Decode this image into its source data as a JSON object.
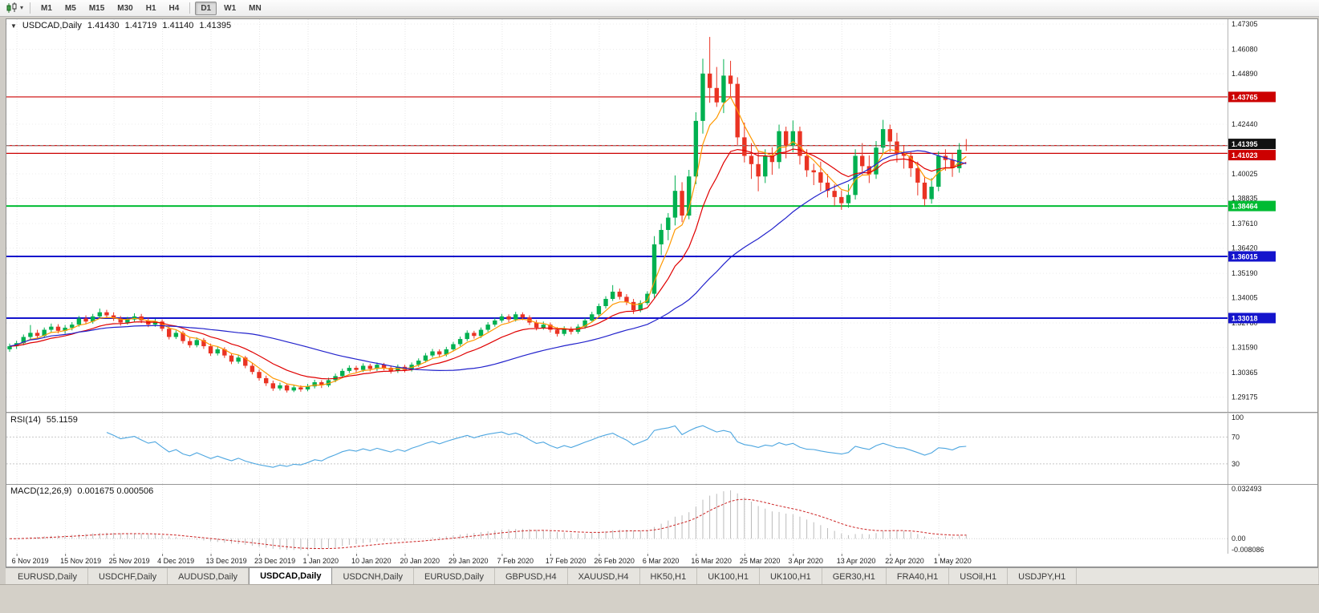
{
  "toolbar": {
    "groups": [
      [
        "M1",
        "M5",
        "M15",
        "M30",
        "H1",
        "H4"
      ],
      [
        "D1",
        "W1",
        "MN"
      ]
    ],
    "selected": "D1",
    "chart_type_icon": "candlestick-chart-icon"
  },
  "window": {
    "symbol_header": {
      "symbol": "USDCAD,Daily",
      "open": "1.41430",
      "high": "1.41719",
      "low": "1.41140",
      "close": "1.41395"
    }
  },
  "chart_data": {
    "type": "candlestick",
    "symbol": "USDCAD",
    "timeframe": "Daily",
    "bull_color": "#00b050",
    "bear_color": "#ea3323",
    "price_range": {
      "min": 1.2846,
      "max": 1.4754
    },
    "y_axis_labels": [
      "1.47305",
      "1.46080",
      "1.44890",
      "1.42440",
      "1.40025",
      "1.38835",
      "1.37610",
      "1.36420",
      "1.35190",
      "1.34005",
      "1.32780",
      "1.31590",
      "1.30365",
      "1.29175"
    ],
    "x_labels": [
      {
        "index": 1,
        "label": "6 Nov 2019"
      },
      {
        "index": 8,
        "label": "15 Nov 2019"
      },
      {
        "index": 15,
        "label": "25 Nov 2019"
      },
      {
        "index": 22,
        "label": "4 Dec 2019"
      },
      {
        "index": 29,
        "label": "13 Dec 2019"
      },
      {
        "index": 36,
        "label": "23 Dec 2019"
      },
      {
        "index": 43,
        "label": "1 Jan 2020"
      },
      {
        "index": 50,
        "label": "10 Jan 2020"
      },
      {
        "index": 57,
        "label": "20 Jan 2020"
      },
      {
        "index": 64,
        "label": "29 Jan 2020"
      },
      {
        "index": 71,
        "label": "7 Feb 2020"
      },
      {
        "index": 78,
        "label": "17 Feb 2020"
      },
      {
        "index": 85,
        "label": "26 Feb 2020"
      },
      {
        "index": 92,
        "label": "6 Mar 2020"
      },
      {
        "index": 99,
        "label": "16 Mar 2020"
      },
      {
        "index": 106,
        "label": "25 Mar 2020"
      },
      {
        "index": 113,
        "label": "3 Apr 2020"
      },
      {
        "index": 120,
        "label": "13 Apr 2020"
      },
      {
        "index": 127,
        "label": "22 Apr 2020"
      },
      {
        "index": 134,
        "label": "1 May 2020"
      }
    ],
    "hlines": [
      {
        "price": 1.43765,
        "label": "1.43765",
        "color": "#cc0000",
        "width": 1.2
      },
      {
        "price": 1.414,
        "color": "#cc0000",
        "width": 1.2
      },
      {
        "price": 1.41023,
        "label": "1.41023",
        "color": "#cc0000",
        "width": 1.2
      },
      {
        "price": 1.38464,
        "label": "1.38464",
        "color": "#00bb33",
        "width": 2
      },
      {
        "price": 1.36015,
        "label": "1.36015",
        "color": "#1414cc",
        "width": 2
      },
      {
        "price": 1.33018,
        "label": "1.33018",
        "color": "#1414cc",
        "width": 2
      }
    ],
    "current_price": {
      "value": 1.41395,
      "label": "1.41395",
      "line_color": "#888888",
      "tag_color": "#111111"
    },
    "moving_averages": [
      {
        "method": "ema",
        "period": 5,
        "color": "#ff9800"
      },
      {
        "method": "ema",
        "period": 13,
        "color": "#e00000"
      },
      {
        "method": "sma",
        "period": 34,
        "color": "#2222cc"
      }
    ],
    "candles": [
      [
        1.315,
        1.3178,
        1.3138,
        1.3165
      ],
      [
        1.3165,
        1.3192,
        1.3152,
        1.318
      ],
      [
        1.318,
        1.3222,
        1.317,
        1.321
      ],
      [
        1.321,
        1.3268,
        1.32,
        1.323
      ],
      [
        1.323,
        1.3245,
        1.3205,
        1.3215
      ],
      [
        1.3215,
        1.3256,
        1.3205,
        1.3245
      ],
      [
        1.3245,
        1.3275,
        1.3232,
        1.326
      ],
      [
        1.326,
        1.3272,
        1.3228,
        1.324
      ],
      [
        1.324,
        1.3268,
        1.3226,
        1.3255
      ],
      [
        1.3255,
        1.3282,
        1.3242,
        1.327
      ],
      [
        1.327,
        1.3312,
        1.326,
        1.33
      ],
      [
        1.33,
        1.3315,
        1.3272,
        1.3285
      ],
      [
        1.3285,
        1.3322,
        1.3275,
        1.331
      ],
      [
        1.331,
        1.3348,
        1.3298,
        1.333
      ],
      [
        1.333,
        1.3342,
        1.3302,
        1.3315
      ],
      [
        1.3315,
        1.333,
        1.3288,
        1.33
      ],
      [
        1.33,
        1.3312,
        1.3265,
        1.328
      ],
      [
        1.328,
        1.3308,
        1.327,
        1.3295
      ],
      [
        1.3295,
        1.3325,
        1.3285,
        1.331
      ],
      [
        1.331,
        1.3322,
        1.3278,
        1.329
      ],
      [
        1.329,
        1.3302,
        1.3258,
        1.327
      ],
      [
        1.327,
        1.3298,
        1.326,
        1.3285
      ],
      [
        1.3285,
        1.3295,
        1.3238,
        1.325
      ],
      [
        1.325,
        1.3262,
        1.3198,
        1.321
      ],
      [
        1.321,
        1.3242,
        1.32,
        1.323
      ],
      [
        1.323,
        1.324,
        1.3178,
        1.319
      ],
      [
        1.319,
        1.3205,
        1.3158,
        1.317
      ],
      [
        1.317,
        1.3208,
        1.316,
        1.3195
      ],
      [
        1.3195,
        1.3205,
        1.3152,
        1.3165
      ],
      [
        1.3165,
        1.3178,
        1.3118,
        1.313
      ],
      [
        1.313,
        1.3162,
        1.312,
        1.315
      ],
      [
        1.315,
        1.316,
        1.3108,
        1.312
      ],
      [
        1.312,
        1.3132,
        1.3078,
        1.309
      ],
      [
        1.309,
        1.3122,
        1.308,
        1.311
      ],
      [
        1.311,
        1.3118,
        1.3058,
        1.307
      ],
      [
        1.307,
        1.3082,
        1.3028,
        1.304
      ],
      [
        1.304,
        1.3052,
        1.2998,
        1.301
      ],
      [
        1.301,
        1.3022,
        1.2972,
        1.2985
      ],
      [
        1.2985,
        1.2998,
        1.2948,
        1.296
      ],
      [
        1.296,
        1.2988,
        1.295,
        1.2975
      ],
      [
        1.2975,
        1.2982,
        1.294,
        1.295
      ],
      [
        1.295,
        1.2978,
        1.2942,
        1.2965
      ],
      [
        1.2965,
        1.2975,
        1.2944,
        1.2955
      ],
      [
        1.2955,
        1.2982,
        1.2946,
        1.297
      ],
      [
        1.297,
        1.3002,
        1.296,
        1.299
      ],
      [
        1.299,
        1.3,
        1.2962,
        1.2975
      ],
      [
        1.2975,
        1.3012,
        1.2966,
        1.3
      ],
      [
        1.3,
        1.3032,
        1.299,
        1.302
      ],
      [
        1.302,
        1.3056,
        1.301,
        1.3045
      ],
      [
        1.3045,
        1.3072,
        1.3035,
        1.306
      ],
      [
        1.306,
        1.307,
        1.3038,
        1.305
      ],
      [
        1.305,
        1.3082,
        1.304,
        1.307
      ],
      [
        1.307,
        1.308,
        1.3042,
        1.3055
      ],
      [
        1.3055,
        1.3086,
        1.3045,
        1.3075
      ],
      [
        1.3075,
        1.3084,
        1.3048,
        1.306
      ],
      [
        1.306,
        1.3072,
        1.3032,
        1.3045
      ],
      [
        1.3045,
        1.3076,
        1.3035,
        1.3065
      ],
      [
        1.3065,
        1.3075,
        1.3038,
        1.305
      ],
      [
        1.305,
        1.3086,
        1.3042,
        1.3075
      ],
      [
        1.3075,
        1.3106,
        1.3065,
        1.3095
      ],
      [
        1.3095,
        1.3132,
        1.3085,
        1.312
      ],
      [
        1.312,
        1.3152,
        1.311,
        1.314
      ],
      [
        1.314,
        1.315,
        1.3112,
        1.3125
      ],
      [
        1.3125,
        1.3162,
        1.3115,
        1.315
      ],
      [
        1.315,
        1.3186,
        1.314,
        1.3175
      ],
      [
        1.3175,
        1.3212,
        1.3165,
        1.32
      ],
      [
        1.32,
        1.3242,
        1.319,
        1.323
      ],
      [
        1.323,
        1.324,
        1.3202,
        1.3215
      ],
      [
        1.3215,
        1.3256,
        1.3205,
        1.3245
      ],
      [
        1.3245,
        1.3282,
        1.3235,
        1.327
      ],
      [
        1.327,
        1.3302,
        1.326,
        1.329
      ],
      [
        1.329,
        1.3322,
        1.328,
        1.331
      ],
      [
        1.331,
        1.332,
        1.3282,
        1.3295
      ],
      [
        1.3295,
        1.3332,
        1.3285,
        1.332
      ],
      [
        1.332,
        1.333,
        1.3292,
        1.3305
      ],
      [
        1.3305,
        1.3315,
        1.3268,
        1.328
      ],
      [
        1.328,
        1.3292,
        1.3242,
        1.3255
      ],
      [
        1.3255,
        1.3285,
        1.3245,
        1.327
      ],
      [
        1.327,
        1.328,
        1.3232,
        1.3245
      ],
      [
        1.3245,
        1.3258,
        1.3212,
        1.3225
      ],
      [
        1.3225,
        1.3262,
        1.3215,
        1.325
      ],
      [
        1.325,
        1.326,
        1.3222,
        1.3235
      ],
      [
        1.3235,
        1.3272,
        1.3225,
        1.326
      ],
      [
        1.326,
        1.3302,
        1.325,
        1.329
      ],
      [
        1.329,
        1.3332,
        1.328,
        1.332
      ],
      [
        1.332,
        1.3372,
        1.331,
        1.336
      ],
      [
        1.336,
        1.3408,
        1.3348,
        1.3395
      ],
      [
        1.3395,
        1.3462,
        1.3385,
        1.343
      ],
      [
        1.343,
        1.3445,
        1.3392,
        1.3405
      ],
      [
        1.3405,
        1.3418,
        1.3365,
        1.338
      ],
      [
        1.338,
        1.3395,
        1.3322,
        1.334
      ],
      [
        1.334,
        1.3388,
        1.333,
        1.3375
      ],
      [
        1.3375,
        1.3432,
        1.3365,
        1.342
      ],
      [
        1.342,
        1.37,
        1.34,
        1.366
      ],
      [
        1.366,
        1.376,
        1.3608,
        1.373
      ],
      [
        1.373,
        1.3812,
        1.368,
        1.379
      ],
      [
        1.379,
        1.3995,
        1.3752,
        1.392
      ],
      [
        1.392,
        1.3962,
        1.3768,
        1.38
      ],
      [
        1.38,
        1.4022,
        1.3782,
        1.399
      ],
      [
        1.399,
        1.4302,
        1.3952,
        1.426
      ],
      [
        1.426,
        1.4562,
        1.4198,
        1.449
      ],
      [
        1.449,
        1.4668,
        1.4348,
        1.442
      ],
      [
        1.442,
        1.4522,
        1.4328,
        1.435
      ],
      [
        1.435,
        1.456,
        1.4298,
        1.448
      ],
      [
        1.448,
        1.4552,
        1.4378,
        1.444
      ],
      [
        1.444,
        1.4472,
        1.4138,
        1.418
      ],
      [
        1.418,
        1.4252,
        1.4058,
        1.409
      ],
      [
        1.409,
        1.4152,
        1.3978,
        1.405
      ],
      [
        1.405,
        1.4112,
        1.3918,
        1.399
      ],
      [
        1.399,
        1.4122,
        1.3958,
        1.409
      ],
      [
        1.409,
        1.4132,
        1.3998,
        1.406
      ],
      [
        1.406,
        1.4242,
        1.4028,
        1.421
      ],
      [
        1.421,
        1.4232,
        1.4078,
        1.414
      ],
      [
        1.414,
        1.4262,
        1.4108,
        1.421
      ],
      [
        1.421,
        1.4232,
        1.4048,
        1.409
      ],
      [
        1.409,
        1.4122,
        1.3988,
        1.402
      ],
      [
        1.402,
        1.4052,
        1.3948,
        1.401
      ],
      [
        1.401,
        1.4062,
        1.3918,
        1.396
      ],
      [
        1.396,
        1.4002,
        1.3888,
        1.392
      ],
      [
        1.392,
        1.3952,
        1.3848,
        1.389
      ],
      [
        1.389,
        1.3922,
        1.3828,
        1.386
      ],
      [
        1.386,
        1.3952,
        1.3838,
        1.39
      ],
      [
        1.39,
        1.4122,
        1.3878,
        1.409
      ],
      [
        1.409,
        1.4152,
        1.3998,
        1.404
      ],
      [
        1.404,
        1.4092,
        1.3958,
        1.4
      ],
      [
        1.4,
        1.4162,
        1.3978,
        1.413
      ],
      [
        1.413,
        1.4265,
        1.4098,
        1.422
      ],
      [
        1.422,
        1.4242,
        1.4108,
        1.416
      ],
      [
        1.416,
        1.4202,
        1.4058,
        1.41
      ],
      [
        1.41,
        1.4142,
        1.4028,
        1.409
      ],
      [
        1.409,
        1.4112,
        1.3988,
        1.403
      ],
      [
        1.403,
        1.4062,
        1.3898,
        1.396
      ],
      [
        1.396,
        1.3992,
        1.3848,
        1.388
      ],
      [
        1.388,
        1.3982,
        1.3858,
        1.394
      ],
      [
        1.394,
        1.4112,
        1.3918,
        1.409
      ],
      [
        1.409,
        1.4122,
        1.4018,
        1.407
      ],
      [
        1.407,
        1.4102,
        1.3988,
        1.403
      ],
      [
        1.403,
        1.4152,
        1.4008,
        1.412
      ],
      [
        1.4143,
        1.41719,
        1.4114,
        1.41395
      ]
    ],
    "rsi": {
      "label": "RSI(14)",
      "value_text": "55.1159",
      "period": 14,
      "color": "#4da6e0",
      "range": [
        0,
        105
      ],
      "dotted_levels": [
        70,
        30
      ],
      "axis_labels": [
        "100",
        "70",
        "30"
      ]
    },
    "macd": {
      "label": "MACD(12,26,9)",
      "values_text": "0.001675 0.000506",
      "fast": 12,
      "slow": 26,
      "signal": 9,
      "hist_color": "#bbbbbb",
      "signal_color": "#cc2222",
      "range": [
        -0.0095,
        0.034
      ],
      "axis_labels": [
        "0.032493",
        "0.00",
        "-0.008086"
      ]
    }
  },
  "tabs": {
    "items": [
      {
        "label": "EURUSD,Daily",
        "active": false
      },
      {
        "label": "USDCHF,Daily",
        "active": false
      },
      {
        "label": "AUDUSD,Daily",
        "active": false
      },
      {
        "label": "USDCAD,Daily",
        "active": true
      },
      {
        "label": "USDCNH,Daily",
        "active": false
      },
      {
        "label": "EURUSD,Daily",
        "active": false
      },
      {
        "label": "GBPUSD,H4",
        "active": false
      },
      {
        "label": "XAUUSD,H4",
        "active": false
      },
      {
        "label": "HK50,H1",
        "active": false
      },
      {
        "label": "UK100,H1",
        "active": false
      },
      {
        "label": "UK100,H1",
        "active": false
      },
      {
        "label": "GER30,H1",
        "active": false
      },
      {
        "label": "FRA40,H1",
        "active": false
      },
      {
        "label": "USOil,H1",
        "active": false
      },
      {
        "label": "USDJPY,H1",
        "active": false
      }
    ]
  }
}
